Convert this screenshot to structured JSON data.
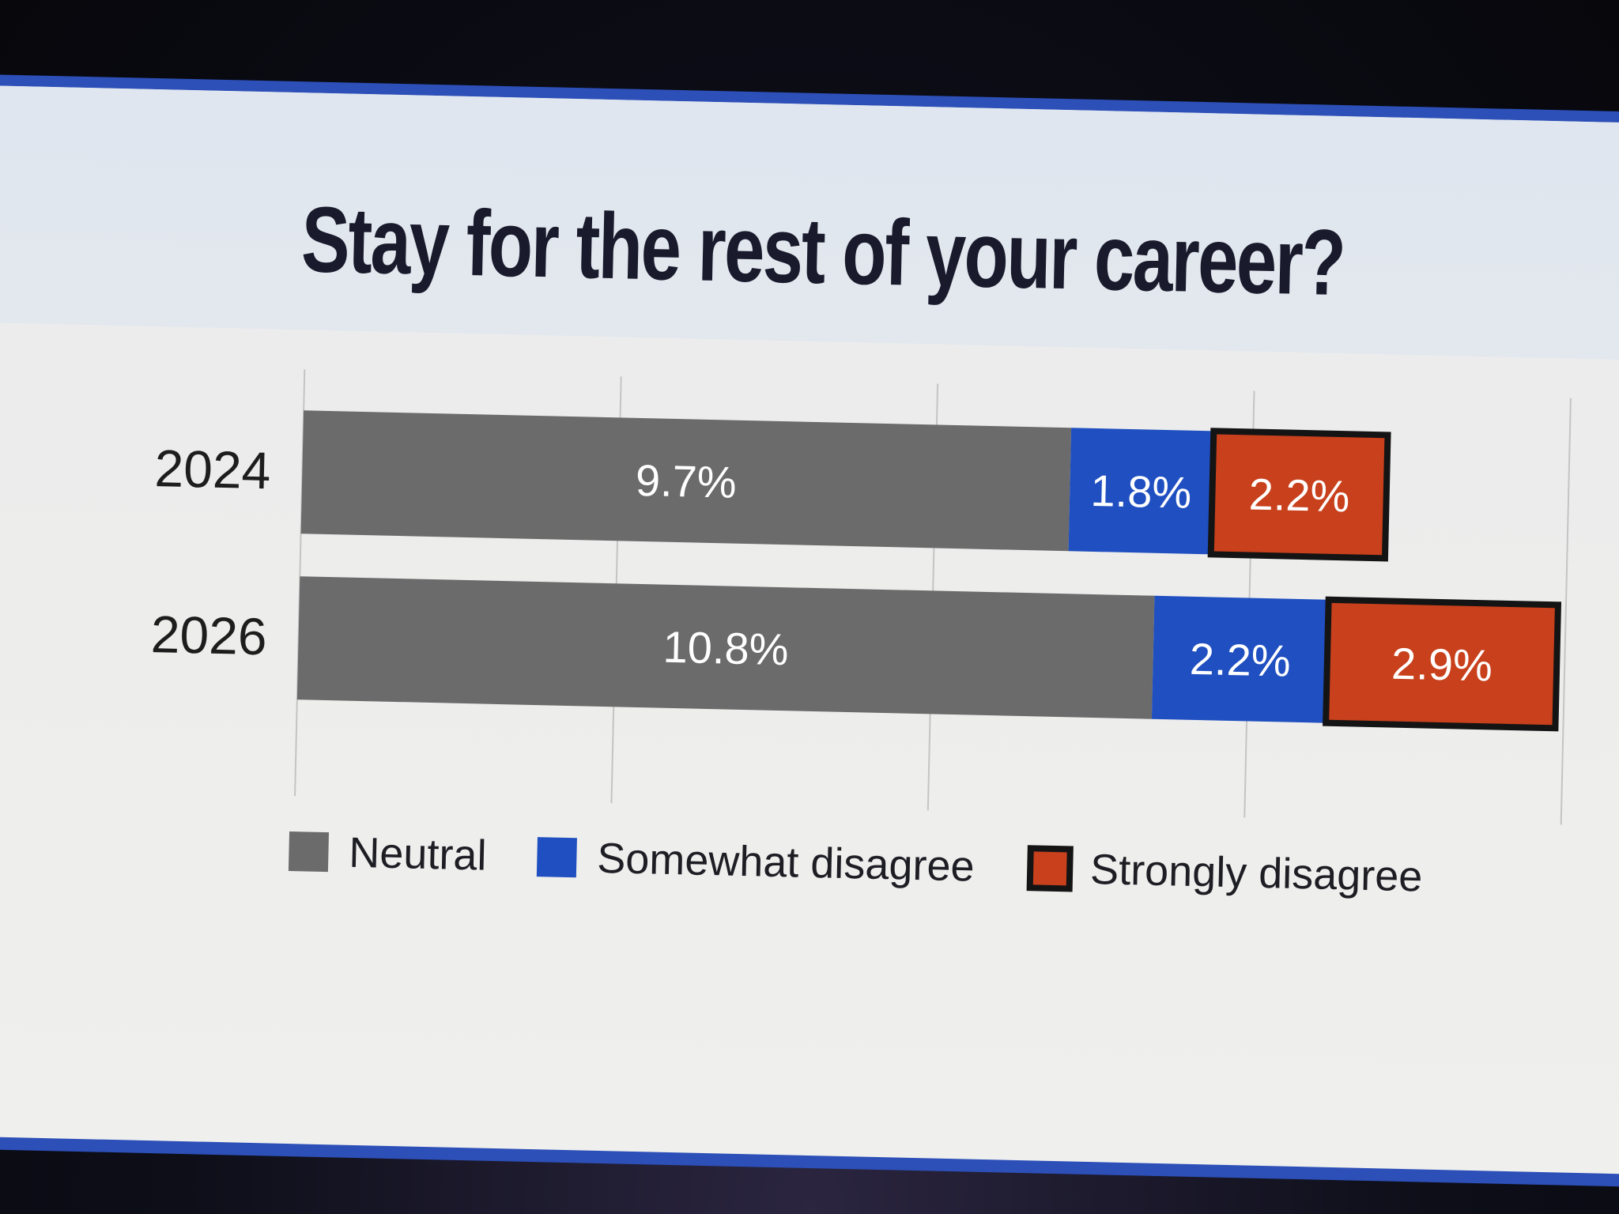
{
  "chart_data": {
    "type": "bar",
    "orientation": "horizontal",
    "stacked": true,
    "title": "Stay for the rest of your career?",
    "categories": [
      "2024",
      "2026"
    ],
    "series": [
      {
        "name": "Neutral",
        "values": [
          9.7,
          10.8
        ],
        "labels": [
          "9.7%",
          "10.8%"
        ],
        "color": "#6b6b6b"
      },
      {
        "name": "Somewhat disagree",
        "values": [
          1.8,
          2.2
        ],
        "labels": [
          "1.8%",
          "2.2%"
        ],
        "color": "#1f4fc0"
      },
      {
        "name": "Strongly disagree",
        "values": [
          2.2,
          2.9
        ],
        "labels": [
          "2.2%",
          "2.9%"
        ],
        "color": "#c8401c",
        "outline": "#141414"
      }
    ],
    "xlim": [
      0,
      16
    ],
    "grid": true,
    "legend_position": "bottom"
  }
}
